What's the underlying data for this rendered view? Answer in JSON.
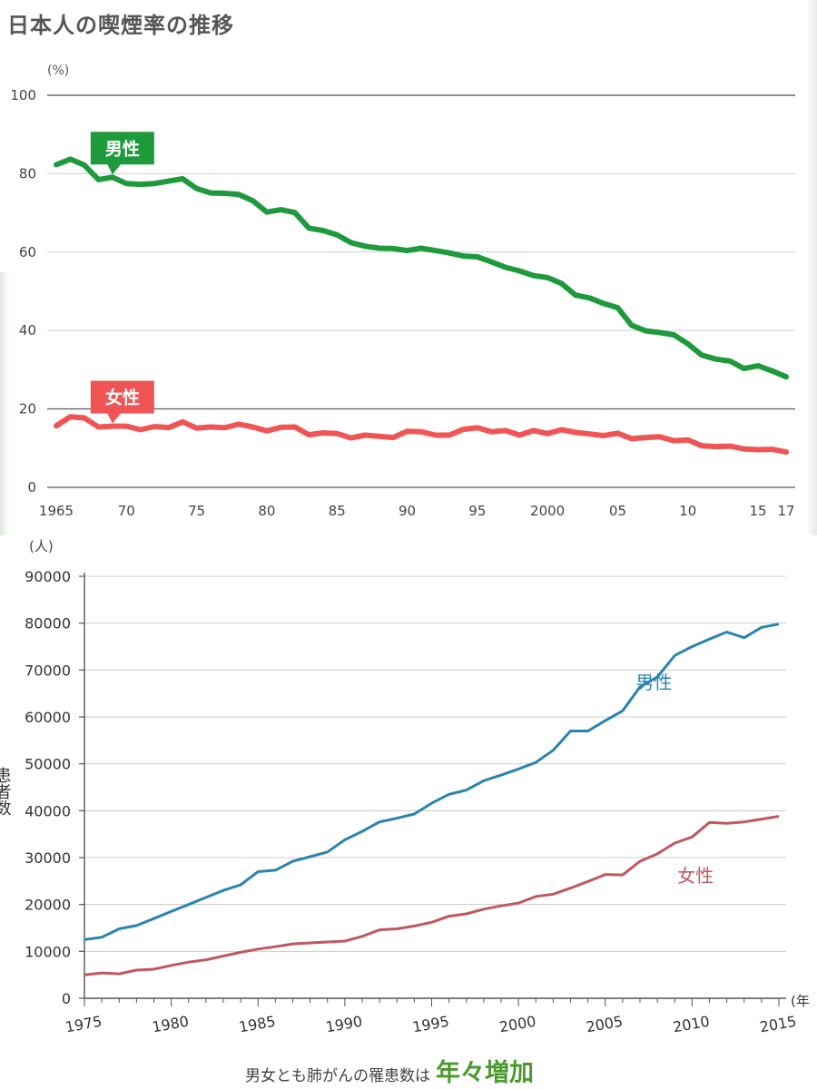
{
  "title": "日本人の喫煙率の推移",
  "caption": {
    "text": "男女とも肺がんの罹患数は",
    "emphasis": "年々増加"
  },
  "colors": {
    "male_top": "#1e9a3c",
    "female_top": "#f05555",
    "male_bottom": "#2a84ae",
    "female_bottom": "#c05860",
    "grid": "#c8c8c8",
    "axis": "#555555"
  },
  "chart_data": [
    {
      "type": "line",
      "title": "日本人の喫煙率の推移",
      "ylabel": "(%)",
      "ylim": [
        0,
        100
      ],
      "yticks": [
        0,
        20,
        40,
        60,
        80,
        100
      ],
      "xlim": [
        1965,
        2017
      ],
      "xticks": [
        {
          "value": 1965,
          "label": "1965"
        },
        {
          "value": 1970,
          "label": "70"
        },
        {
          "value": 1975,
          "label": "75"
        },
        {
          "value": 1980,
          "label": "80"
        },
        {
          "value": 1985,
          "label": "85"
        },
        {
          "value": 1990,
          "label": "90"
        },
        {
          "value": 1995,
          "label": "95"
        },
        {
          "value": 2000,
          "label": "2000"
        },
        {
          "value": 2005,
          "label": "05"
        },
        {
          "value": 2010,
          "label": "10"
        },
        {
          "value": 2015,
          "label": "15"
        },
        {
          "value": 2017,
          "label": "17"
        }
      ],
      "x": [
        1965,
        1966,
        1967,
        1968,
        1969,
        1970,
        1971,
        1972,
        1973,
        1974,
        1975,
        1976,
        1977,
        1978,
        1979,
        1980,
        1981,
        1982,
        1983,
        1984,
        1985,
        1986,
        1987,
        1988,
        1989,
        1990,
        1991,
        1992,
        1993,
        1994,
        1995,
        1996,
        1997,
        1998,
        1999,
        2000,
        2001,
        2002,
        2003,
        2004,
        2005,
        2006,
        2007,
        2008,
        2009,
        2010,
        2011,
        2012,
        2013,
        2014,
        2015,
        2016,
        2017
      ],
      "series": [
        {
          "name": "男性",
          "color": "#1e9a3c",
          "callout_x": 1969,
          "values": [
            82.3,
            83.7,
            82.2,
            78.5,
            79.1,
            77.5,
            77.3,
            77.5,
            78.1,
            78.7,
            76.2,
            75.1,
            75.0,
            74.7,
            73.1,
            70.2,
            70.8,
            70.1,
            66.1,
            65.5,
            64.4,
            62.4,
            61.5,
            61.0,
            60.9,
            60.4,
            61.0,
            60.4,
            59.8,
            59.0,
            58.8,
            57.5,
            56.1,
            55.2,
            54.0,
            53.5,
            52.0,
            49.0,
            48.3,
            46.9,
            45.8,
            41.3,
            39.9,
            39.5,
            38.9,
            36.6,
            33.7,
            32.7,
            32.2,
            30.3,
            31.0,
            29.7,
            28.2
          ]
        },
        {
          "name": "女性",
          "color": "#f05555",
          "callout_x": 1969,
          "values": [
            15.7,
            18.0,
            17.7,
            15.4,
            15.6,
            15.6,
            14.7,
            15.5,
            15.2,
            16.7,
            15.1,
            15.4,
            15.2,
            16.1,
            15.4,
            14.4,
            15.3,
            15.4,
            13.4,
            13.9,
            13.7,
            12.6,
            13.3,
            13.0,
            12.7,
            14.3,
            14.2,
            13.3,
            13.3,
            14.8,
            15.2,
            14.2,
            14.5,
            13.3,
            14.5,
            13.7,
            14.7,
            14.0,
            13.6,
            13.2,
            13.8,
            12.4,
            12.7,
            12.9,
            11.9,
            12.1,
            10.6,
            10.4,
            10.5,
            9.8,
            9.6,
            9.7,
            9.0
          ]
        }
      ]
    },
    {
      "type": "line",
      "ylabel": "患者数",
      "ylabel_unit": "(人)",
      "xlabel_unit": "(年",
      "ylim": [
        0,
        90000
      ],
      "yticks": [
        0,
        10000,
        20000,
        30000,
        40000,
        50000,
        60000,
        70000,
        80000,
        90000
      ],
      "xlim": [
        1975,
        2015
      ],
      "xticks": [
        1975,
        1980,
        1985,
        1990,
        1995,
        2000,
        2005,
        2010,
        2015
      ],
      "x": [
        1975,
        1976,
        1977,
        1978,
        1979,
        1980,
        1981,
        1982,
        1983,
        1984,
        1985,
        1986,
        1987,
        1988,
        1989,
        1990,
        1991,
        1992,
        1993,
        1994,
        1995,
        1996,
        1997,
        1998,
        1999,
        2000,
        2001,
        2002,
        2003,
        2004,
        2005,
        2006,
        2007,
        2008,
        2009,
        2010,
        2011,
        2012,
        2013,
        2014,
        2015
      ],
      "series": [
        {
          "name": "男性",
          "color": "#2a84ae",
          "label_x": 2007.8,
          "label_y": 66000,
          "values": [
            12500,
            13000,
            14800,
            15500,
            17000,
            18500,
            20000,
            21500,
            23000,
            24200,
            27000,
            27300,
            29200,
            30200,
            31200,
            33800,
            35600,
            37600,
            38400,
            39300,
            41600,
            43500,
            44400,
            46400,
            47600,
            48900,
            50300,
            52900,
            57000,
            57000,
            59200,
            61300,
            66400,
            68500,
            73100,
            75000,
            76600,
            78100,
            76900,
            79100,
            79800
          ]
        },
        {
          "name": "女性",
          "color": "#c05860",
          "label_x": 2010.2,
          "label_y": 24800,
          "values": [
            5000,
            5400,
            5200,
            6000,
            6200,
            7000,
            7700,
            8200,
            9000,
            9800,
            10500,
            11000,
            11600,
            11800,
            12000,
            12200,
            13200,
            14600,
            14800,
            15400,
            16200,
            17500,
            18000,
            19000,
            19700,
            20300,
            21700,
            22200,
            23500,
            24900,
            26400,
            26300,
            29200,
            30800,
            33100,
            34400,
            37500,
            37300,
            37600,
            38200,
            38800
          ]
        }
      ]
    }
  ]
}
